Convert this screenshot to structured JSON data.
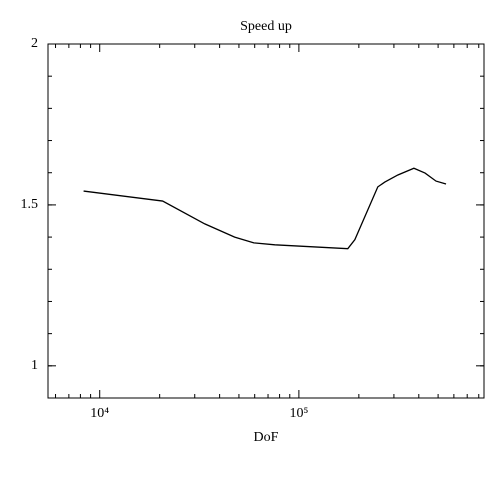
{
  "chart_data": {
    "type": "line",
    "title": "Speed up",
    "x_label": "DoF",
    "x": [
      8300,
      20700,
      33700,
      47600,
      59400,
      75700,
      176000,
      191000,
      249000,
      270000,
      314000,
      378000,
      430000,
      488000,
      548000
    ],
    "series": [
      {
        "name": "Speed up",
        "color": "#000000",
        "values": [
          1.543,
          1.512,
          1.441,
          1.4,
          1.382,
          1.376,
          1.364,
          1.392,
          1.556,
          1.571,
          1.593,
          1.614,
          1.599,
          1.574,
          1.565
        ]
      }
    ],
    "xlim": [
      5500,
      850000
    ],
    "xscale": "log",
    "xticks": [
      {
        "value": 10000,
        "label": "10⁴"
      },
      {
        "value": 100000,
        "label": "10⁵"
      }
    ],
    "ylim": [
      0.9,
      2
    ],
    "yticks": [
      1,
      1.5,
      2
    ],
    "grid": false
  }
}
